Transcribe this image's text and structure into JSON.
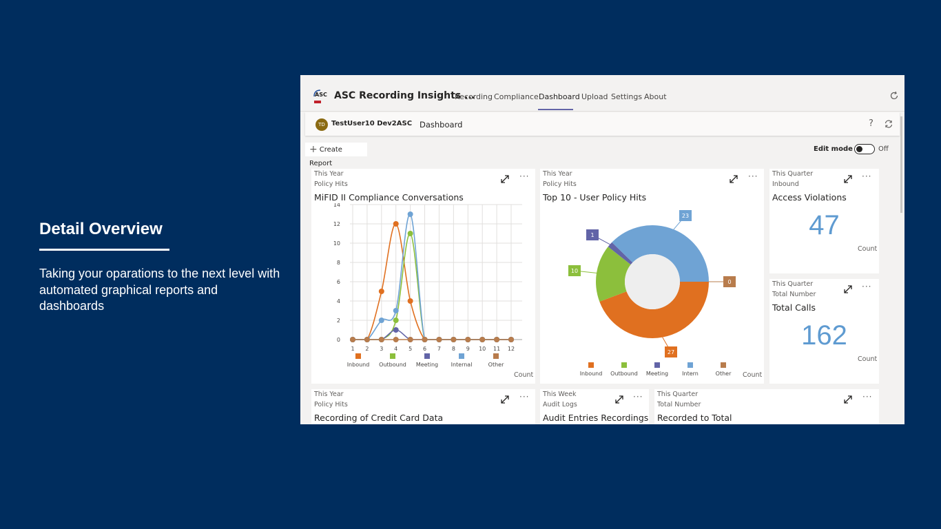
{
  "slide": {
    "title": "Detail Overview",
    "description": "Taking your oparations to the next level with automated graphical reports and dashboards"
  },
  "app": {
    "logo_text": "ASC",
    "title": "ASC Recording Insights ...",
    "tabs": [
      {
        "label": "Recording"
      },
      {
        "label": "Compliance"
      },
      {
        "label": "Dashboard",
        "active": true
      },
      {
        "label": "Upload"
      },
      {
        "label": "Settings"
      },
      {
        "label": "About"
      }
    ],
    "user": {
      "initials": "TD",
      "name": "TestUser10 Dev2ASC"
    },
    "breadcrumb": "Dashboard",
    "create_report": "Create Report",
    "edit_mode": {
      "label": "Edit mode",
      "state": "Off"
    }
  },
  "colors": {
    "inbound": "#e07020",
    "outbound": "#8cbf3c",
    "meeting": "#6264a7",
    "internal": "#6fa3d4",
    "other": "#b87c4c",
    "big_number": "#5f9bd1",
    "background": "#002d5e"
  },
  "cards": {
    "mifid": {
      "period": "This Year",
      "metric": "Policy Hits",
      "title": "MiFID II Compliance Conversations",
      "unit": "Count"
    },
    "top10": {
      "period": "This Year",
      "metric": "Policy Hits",
      "title": "Top 10 - User Policy Hits",
      "unit": "Count"
    },
    "access": {
      "period": "This Quarter",
      "metric": "Inbound",
      "title": "Access Violations",
      "value": "47",
      "unit": "Count"
    },
    "calls": {
      "period": "This Quarter",
      "metric": "Total Number",
      "title": "Total Calls",
      "value": "162",
      "unit": "Count"
    },
    "credit": {
      "period": "This Year",
      "metric": "Policy Hits",
      "title": "Recording of Credit Card Data"
    },
    "audit": {
      "period": "This Week",
      "metric": "Audit Logs",
      "title": "Audit Entries Recordings"
    },
    "recorded": {
      "period": "This Quarter",
      "metric": "Total Number",
      "title": "Recorded to Total"
    }
  },
  "chart_data": [
    {
      "type": "line",
      "title": "MiFID II Compliance Conversations",
      "x": [
        1,
        2,
        3,
        4,
        5,
        6,
        7,
        8,
        9,
        10,
        11,
        12
      ],
      "ylim": [
        0,
        14
      ],
      "yticks": [
        0,
        2,
        4,
        6,
        8,
        10,
        12,
        14
      ],
      "grid": true,
      "legend_position": "bottom",
      "series": [
        {
          "name": "Inbound",
          "values": [
            0,
            0,
            5,
            12,
            4,
            0,
            0,
            0,
            0,
            0,
            0,
            0
          ]
        },
        {
          "name": "Outbound",
          "values": [
            0,
            0,
            0,
            2,
            11,
            0,
            0,
            0,
            0,
            0,
            0,
            0
          ]
        },
        {
          "name": "Meeting",
          "values": [
            0,
            0,
            0,
            1,
            0,
            0,
            0,
            0,
            0,
            0,
            0,
            0
          ]
        },
        {
          "name": "Internal",
          "values": [
            0,
            0,
            2,
            3,
            13,
            0,
            0,
            0,
            0,
            0,
            0,
            0
          ]
        },
        {
          "name": "Other",
          "values": [
            0,
            0,
            0,
            0,
            0,
            0,
            0,
            0,
            0,
            0,
            0,
            0
          ]
        }
      ]
    },
    {
      "type": "pie",
      "title": "Top 10 - User Policy Hits",
      "donut": true,
      "legend_position": "bottom",
      "categories": [
        "Inbound",
        "Outbound",
        "Meeting",
        "Intern",
        "Other"
      ],
      "values": [
        27,
        10,
        1,
        23,
        0
      ]
    }
  ]
}
